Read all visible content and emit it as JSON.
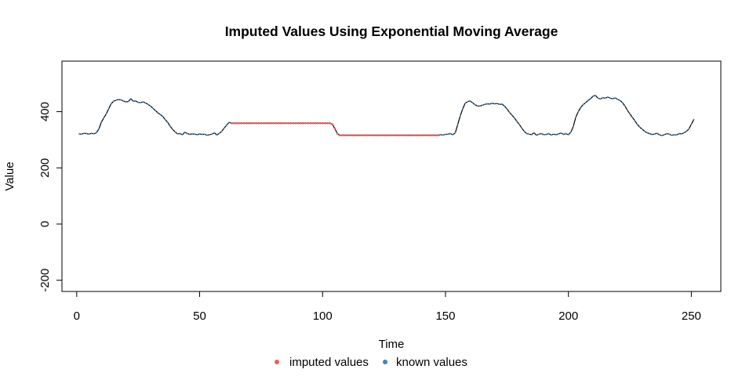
{
  "chart_data": {
    "type": "line",
    "title": "Imputed Values Using Exponential Moving Average",
    "xlabel": "Time",
    "ylabel": "Value",
    "xlim": [
      -6,
      262
    ],
    "ylim": [
      -240,
      580
    ],
    "x_ticks": [
      0,
      50,
      100,
      150,
      200,
      250
    ],
    "y_ticks": [
      -200,
      0,
      200,
      400
    ],
    "grid": false,
    "legend_position": "bottom",
    "legend": [
      {
        "label": "imputed values",
        "color": "#E8605E"
      },
      {
        "label": "known values",
        "color": "#4682B4"
      }
    ],
    "line_color": "#000000",
    "series": [
      {
        "name": "known values",
        "segments": [
          {
            "x": [
              1,
              2,
              3,
              4,
              5,
              6,
              7,
              8,
              9,
              10,
              11,
              12,
              13,
              14,
              15,
              16,
              17,
              18,
              19,
              20,
              21,
              22,
              23,
              24,
              25,
              26,
              27,
              28,
              29,
              30,
              31,
              32,
              33,
              34,
              35,
              36,
              37,
              38,
              39,
              40,
              41,
              42,
              43,
              44,
              45,
              46,
              47,
              48,
              49,
              50,
              51,
              52,
              53,
              54,
              55,
              56,
              57,
              58,
              59,
              60,
              61,
              62
            ],
            "y": [
              321,
              320,
              323,
              322,
              320,
              323,
              321,
              325,
              338,
              362,
              378,
              392,
              410,
              428,
              437,
              441,
              443,
              442,
              438,
              435,
              436,
              446,
              437,
              438,
              433,
              432,
              435,
              431,
              426,
              420,
              412,
              404,
              396,
              390,
              383,
              372,
              362,
              348,
              337,
              328,
              321,
              322,
              318,
              327,
              322,
              319,
              321,
              320,
              318,
              321,
              319,
              320,
              316,
              318,
              320,
              325,
              317,
              323,
              330,
              342,
              352,
              362
            ]
          },
          {
            "x": [
              148,
              149,
              150,
              151,
              152,
              153,
              154,
              155,
              156,
              157,
              158,
              159,
              160,
              161,
              162,
              163,
              164,
              165,
              166,
              167,
              168,
              169,
              170,
              171,
              172,
              173,
              174,
              175,
              176,
              177,
              178,
              179,
              180,
              181,
              182,
              183,
              184,
              185,
              186,
              187,
              188,
              189,
              190,
              191,
              192,
              193,
              194,
              195,
              196,
              197,
              198,
              199,
              200,
              201,
              202,
              203,
              204,
              205,
              206,
              207,
              208,
              209,
              210,
              211,
              212,
              213,
              214,
              215,
              216,
              217,
              218,
              219,
              220,
              221,
              222,
              223,
              224,
              225,
              226,
              227,
              228,
              229,
              230,
              231,
              232,
              233,
              234,
              235,
              236,
              237,
              238,
              239,
              240,
              241,
              242,
              243,
              244,
              245,
              246,
              247,
              248,
              249,
              250,
              251
            ],
            "y": [
              318,
              317,
              319,
              320,
              322,
              318,
              325,
              355,
              385,
              410,
              430,
              436,
              438,
              432,
              425,
              420,
              420,
              423,
              426,
              428,
              427,
              430,
              428,
              429,
              426,
              427,
              420,
              410,
              398,
              388,
              378,
              366,
              355,
              342,
              330,
              322,
              320,
              318,
              325,
              316,
              320,
              322,
              318,
              319,
              322,
              317,
              320,
              318,
              321,
              324,
              319,
              322,
              318,
              327,
              348,
              380,
              400,
              415,
              425,
              432,
              440,
              446,
              455,
              458,
              448,
              445,
              450,
              448,
              452,
              448,
              446,
              449,
              444,
              440,
              432,
              420,
              405,
              392,
              380,
              368,
              355,
              345,
              338,
              330,
              325,
              322,
              319,
              320,
              323,
              318,
              315,
              318,
              322,
              320,
              316,
              318,
              317,
              322,
              321,
              325,
              330,
              338,
              355,
              372
            ]
          }
        ]
      },
      {
        "name": "imputed values",
        "segments": [
          {
            "x_start": 63,
            "x_end": 103,
            "value": 359
          },
          {
            "x_start": 104,
            "x_end": 107,
            "values": [
              355,
              340,
              322,
              316
            ]
          },
          {
            "x_start": 108,
            "x_end": 147,
            "value": 316
          }
        ]
      }
    ]
  }
}
